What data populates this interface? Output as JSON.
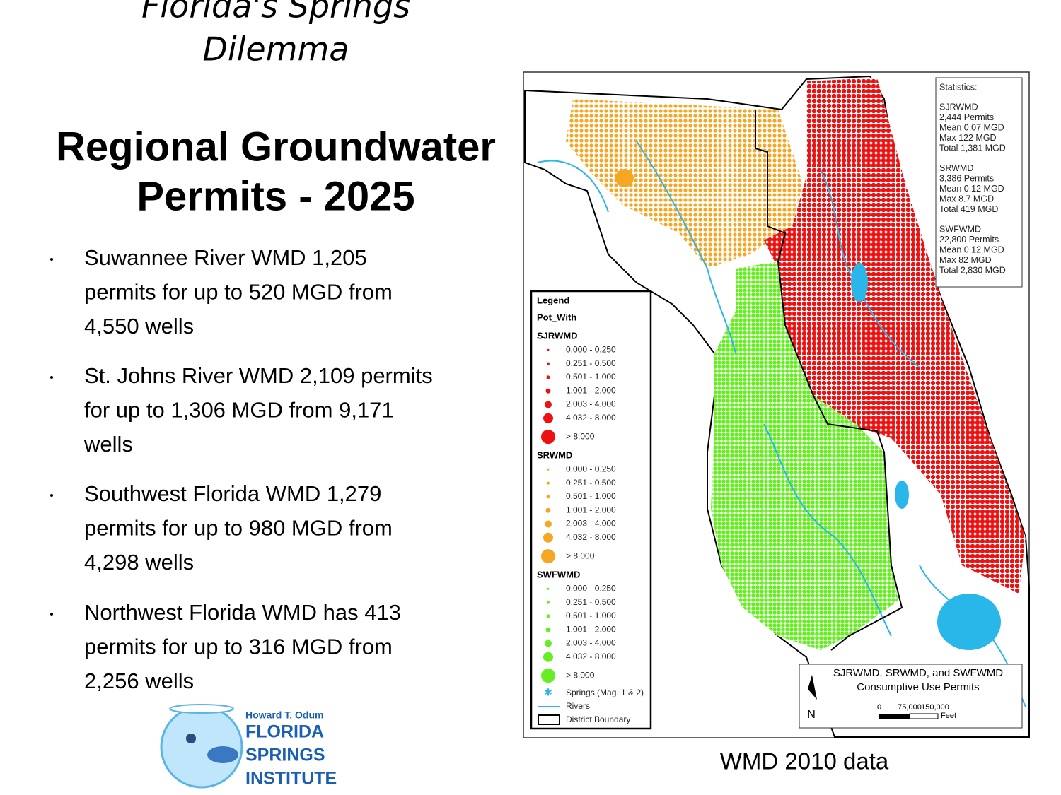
{
  "header": {
    "title": [
      "Florida's Springs",
      "Dilemma"
    ],
    "subtitle": [
      "Regional Groundwater",
      "Permits - 2025"
    ]
  },
  "bullets": [
    [
      "Suwannee River WMD 1,205",
      "permits for up to 520 MGD from",
      "4,550 wells"
    ],
    [
      "St. Johns River WMD 2,109 permits",
      "for up to 1,306 MGD from 9,171",
      "wells"
    ],
    [
      "Southwest Florida WMD 1,279",
      "permits for up to 980 MGD from",
      "4,298 wells"
    ],
    [
      "Northwest Florida WMD has 413",
      "permits for up to 316 MGD from",
      "2,256 wells"
    ]
  ],
  "map": {
    "statistics": {
      "title": "Statistics:",
      "groups": [
        {
          "name": "SJRWMD",
          "lines": [
            "2,444 Permits",
            "Mean 0.07 MGD",
            "Max 122 MGD",
            "Total 1,381 MGD"
          ]
        },
        {
          "name": "SRWMD",
          "lines": [
            "3,386 Permits",
            "Mean 0.12 MGD",
            "Max 8.7 MGD",
            "Total 419 MGD"
          ]
        },
        {
          "name": "SWFWMD",
          "lines": [
            "22,800 Permits",
            "Mean 0.12 MGD",
            "Max 82 MGD",
            "Total 2,830 MGD"
          ]
        }
      ]
    },
    "legend": {
      "title": "Legend",
      "field": "Pot_With",
      "groups": [
        {
          "name": "SJRWMD",
          "color": "#ee1111",
          "classes": [
            "0.000 - 0.250",
            "0.251 - 0.500",
            "0.501 - 1.000",
            "1.001 - 2.000",
            "2.003 - 4.000",
            "4.032 - 8.000",
            "> 8.000"
          ]
        },
        {
          "name": "SRWMD",
          "color": "#f5a623",
          "classes": [
            "0.000 - 0.250",
            "0.251 - 0.500",
            "0.501 - 1.000",
            "1.001 - 2.000",
            "2.003 - 4.000",
            "4.032 - 8.000",
            "> 8.000"
          ]
        },
        {
          "name": "SWFWMD",
          "color": "#66ee22",
          "classes": [
            "0.000 - 0.250",
            "0.251 - 0.500",
            "0.501 - 1.000",
            "1.001 - 2.000",
            "2.003 - 4.000",
            "4.032 - 8.000",
            "> 8.000"
          ]
        }
      ],
      "springs": "Springs (Mag. 1 & 2)",
      "rivers": "Rivers",
      "boundary": "District Boundary"
    },
    "map_title": [
      "SJRWMD, SRWMD, and SWFWMD",
      "Consumptive Use Permits"
    ],
    "scale": {
      "labels": [
        "0",
        "75,000",
        "150,000"
      ],
      "unit": "Feet"
    },
    "north": "N"
  },
  "caption": "WMD 2010 data",
  "logo": [
    "Howard T. Odum",
    "FLORIDA",
    "SPRINGS",
    "INSTITUTE"
  ]
}
